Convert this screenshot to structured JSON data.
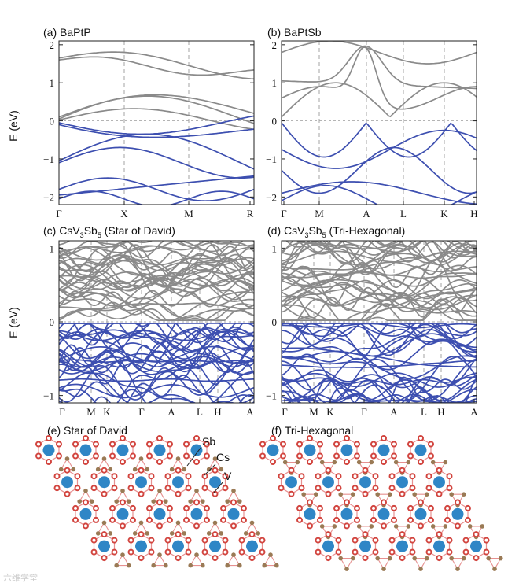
{
  "colors": {
    "conduction": "#8a8a8a",
    "valence": "#3d4fb0",
    "cs_atom": "#2f86c6",
    "sb_atom": "#d2453f",
    "v_atom": "#9a7a55",
    "bond": "#e79090"
  },
  "y_axis_label": "E (eV)",
  "panels": [
    {
      "title": "(a) BaPtP",
      "chart_data": {
        "type": "line",
        "xticks": [
          "Γ",
          "X",
          "M",
          "R"
        ],
        "yticks": [
          "2",
          "1",
          "0",
          "−1",
          "−2"
        ],
        "ylim": [
          -2.2,
          2.1
        ],
        "ylabel": "E (eV)"
      }
    },
    {
      "title": "(b) BaPtSb",
      "chart_data": {
        "type": "line",
        "xticks": [
          "Γ",
          "M",
          "A",
          "L",
          "K",
          "H"
        ],
        "yticks": [
          "2",
          "1",
          "0",
          "−1",
          "−2"
        ],
        "ylim": [
          -2.2,
          2.1
        ],
        "ylabel": ""
      }
    },
    {
      "title_main": "(c) CsV",
      "title_sub1": "3",
      "title_mid": "Sb",
      "title_sub2": "5",
      "title_end": " (Star of David)",
      "chart_data": {
        "type": "line",
        "xticks": [
          "Γ",
          "M",
          "K",
          "Γ",
          "A",
          "L",
          "H",
          "A"
        ],
        "yticks": [
          "1",
          "0",
          "−1"
        ],
        "ylim": [
          -1.1,
          1.1
        ],
        "ylabel": "E (eV)"
      }
    },
    {
      "title_main": "(d) CsV",
      "title_sub1": "3",
      "title_mid": "Sb",
      "title_sub2": "5",
      "title_end": " (Tri-Hexagonal)",
      "chart_data": {
        "type": "line",
        "xticks": [
          "Γ",
          "M",
          "K",
          "Γ",
          "A",
          "L",
          "H",
          "A"
        ],
        "yticks": [
          "1",
          "0",
          "−1"
        ],
        "ylim": [
          -1.1,
          1.1
        ],
        "ylabel": ""
      }
    }
  ],
  "structures": [
    {
      "title": "(e) Star of David",
      "labels": [
        "Sb",
        "Cs",
        "V"
      ]
    },
    {
      "title": "(f) Tri-Hexagonal"
    }
  ],
  "watermark": "六维学堂"
}
